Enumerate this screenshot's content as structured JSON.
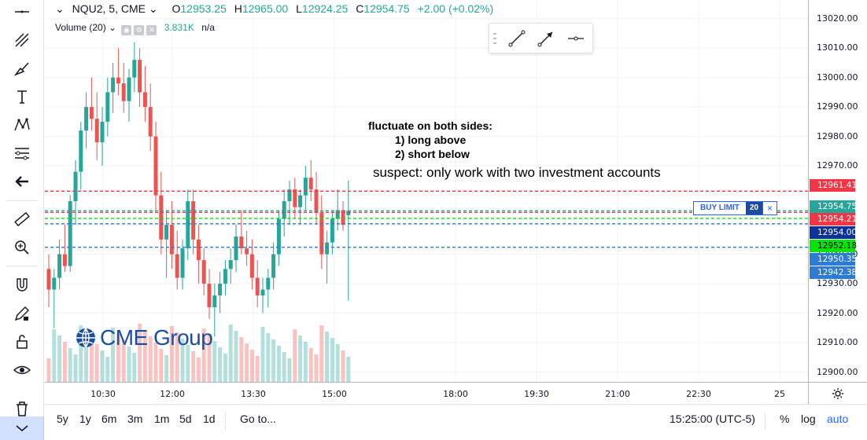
{
  "legend": {
    "symbol": "NQU2, 5, CME",
    "open_label": "O",
    "open": "12953.25",
    "high_label": "H",
    "high": "12965.00",
    "low_label": "L",
    "low": "12924.25",
    "close_label": "C",
    "close": "12954.75",
    "change": "+2.00 (+0.02%)"
  },
  "volume_legend": {
    "name": "Volume (20)",
    "value": "3.831K",
    "ma": "n/a"
  },
  "annotations": {
    "line1": "fluctuate on both sides:",
    "line2": "1) long above",
    "line3": "2) short below",
    "note": "suspect: only work with two investment accounts"
  },
  "order": {
    "label": "BUY LIMIT",
    "qty": "20",
    "close": "×"
  },
  "logo_text": "CME Group",
  "price_axis": {
    "ticks": [
      "13020.00",
      "13010.00",
      "13000.00",
      "12990.00",
      "12980.00",
      "12970.00",
      "12940.00",
      "12930.00",
      "12920.00",
      "12910.00",
      "12900.00"
    ],
    "badges": [
      {
        "text": "12961.41",
        "color": "#f23645"
      },
      {
        "text": "12954.75",
        "color": "#26a69a"
      },
      {
        "text": "12954.21",
        "color": "#f23645"
      },
      {
        "text": "12954.00",
        "color": "#0c3299"
      },
      {
        "text": "12952.18",
        "color": "#00e600",
        "text_color": "#000"
      },
      {
        "text": "12950.35",
        "color": "#2e7bd6"
      },
      {
        "text": "12942.38",
        "color": "#2e7bd6"
      }
    ]
  },
  "time_axis": {
    "ticks": [
      "10:30",
      "12:00",
      "13:30",
      "15:00",
      "18:00",
      "19:30",
      "21:00",
      "22:30",
      "25"
    ]
  },
  "bottom_bar": {
    "ranges": [
      "5y",
      "1y",
      "6m",
      "3m",
      "1m",
      "5d",
      "1d"
    ],
    "goto": "Go to...",
    "clock": "15:25:00 (UTC-5)",
    "percent": "%",
    "log": "log",
    "auto": "auto"
  },
  "colors": {
    "up": "#26a69a",
    "down": "#ef5350",
    "accent": "#2962ff"
  },
  "chart_data": {
    "type": "candlestick",
    "symbol": "NQU2",
    "interval": "5",
    "ylim": [
      12898,
      13025
    ],
    "candles": [
      [
        12935,
        12940,
        12922,
        12928
      ],
      [
        12928,
        12935,
        12915,
        12932
      ],
      [
        12932,
        12945,
        12928,
        12940
      ],
      [
        12940,
        12950,
        12934,
        12936
      ],
      [
        12936,
        12960,
        12934,
        12958
      ],
      [
        12958,
        12972,
        12950,
        12968
      ],
      [
        12968,
        12985,
        12962,
        12982
      ],
      [
        12982,
        12995,
        12976,
        12990
      ],
      [
        12990,
        13000,
        12982,
        12986
      ],
      [
        12986,
        12995,
        12972,
        12978
      ],
      [
        12978,
        12990,
        12970,
        12985
      ],
      [
        12985,
        13000,
        12980,
        12995
      ],
      [
        12995,
        13005,
        12988,
        13000
      ],
      [
        13000,
        13010,
        12994,
        12998
      ],
      [
        12998,
        13005,
        12988,
        12992
      ],
      [
        12992,
        13003,
        12985,
        13000
      ],
      [
        13000,
        13012,
        12995,
        13006
      ],
      [
        13006,
        13010,
        12990,
        12995
      ],
      [
        12995,
        13004,
        12985,
        12990
      ],
      [
        12990,
        12998,
        12975,
        12980
      ],
      [
        12980,
        12985,
        12955,
        12960
      ],
      [
        12960,
        12968,
        12940,
        12945
      ],
      [
        12945,
        12955,
        12932,
        12950
      ],
      [
        12950,
        12958,
        12935,
        12940
      ],
      [
        12940,
        12948,
        12928,
        12932
      ],
      [
        12932,
        12945,
        12928,
        12942
      ],
      [
        12942,
        12962,
        12938,
        12958
      ],
      [
        12958,
        12962,
        12940,
        12945
      ],
      [
        12945,
        12950,
        12930,
        12938
      ],
      [
        12938,
        12942,
        12926,
        12930
      ],
      [
        12930,
        12935,
        12918,
        12922
      ],
      [
        12922,
        12930,
        12912,
        12926
      ],
      [
        12926,
        12934,
        12920,
        12930
      ],
      [
        12930,
        12938,
        12926,
        12935
      ],
      [
        12935,
        12942,
        12930,
        12938
      ],
      [
        12938,
        12950,
        12934,
        12946
      ],
      [
        12946,
        12955,
        12940,
        12942
      ],
      [
        12942,
        12948,
        12936,
        12940
      ],
      [
        12940,
        12945,
        12928,
        12932
      ],
      [
        12932,
        12938,
        12922,
        12926
      ],
      [
        12926,
        12932,
        12920,
        12928
      ],
      [
        12928,
        12935,
        12922,
        12932
      ],
      [
        12932,
        12944,
        12928,
        12940
      ],
      [
        12940,
        12955,
        12936,
        12952
      ],
      [
        12952,
        12962,
        12946,
        12958
      ],
      [
        12958,
        12965,
        12950,
        12962
      ],
      [
        12962,
        12966,
        12952,
        12956
      ],
      [
        12956,
        12962,
        12950,
        12960
      ],
      [
        12960,
        12970,
        12955,
        12966
      ],
      [
        12966,
        12972,
        12958,
        12962
      ],
      [
        12962,
        12968,
        12950,
        12954
      ],
      [
        12954,
        12960,
        12935,
        12940
      ],
      [
        12940,
        12948,
        12930,
        12944
      ],
      [
        12944,
        12955,
        12940,
        12952
      ],
      [
        12952,
        12962,
        12948,
        12955
      ],
      [
        12955,
        12958,
        12948,
        12950
      ],
      [
        12953.25,
        12965,
        12924.25,
        12954.75
      ]
    ],
    "levels": [
      {
        "price": 12961.41,
        "color": "#f23645"
      },
      {
        "price": 12954.75,
        "color": "#26a69a"
      },
      {
        "price": 12954.21,
        "color": "#f23645"
      },
      {
        "price": 12952.18,
        "color": "#00e600"
      },
      {
        "price": 12950.35,
        "color": "#2e7bd6"
      },
      {
        "price": 12942.38,
        "color": "#2e7bd6"
      }
    ]
  }
}
